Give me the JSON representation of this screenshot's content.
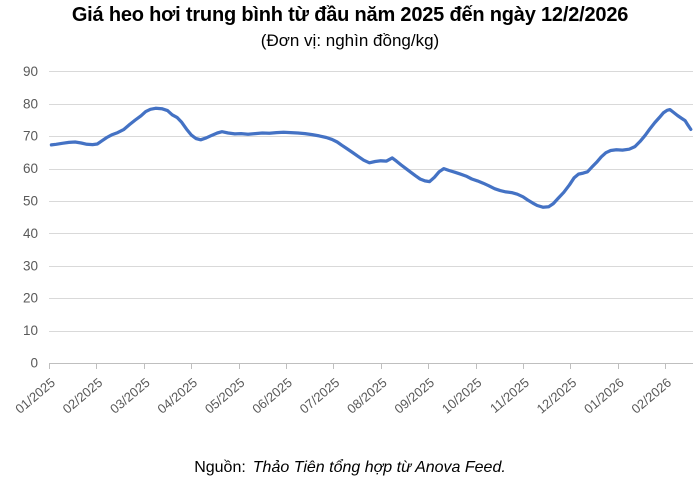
{
  "header": {
    "title": "Giá heo hơi trung bình từ đầu năm 2025 đến ngày 12/2/2026",
    "subtitle": "(Đơn vị: nghìn đồng/kg)"
  },
  "footer": {
    "source_label": "Nguồn:",
    "source_text": "Thảo Tiên tổng hợp từ Anova Feed."
  },
  "style": {
    "line_color": "#4472C4",
    "gridline_color": "#D9D9D9",
    "axis_color": "#BFBFBF",
    "tick_label_color": "#595959",
    "background": "#FFFFFF"
  },
  "chart_data": {
    "type": "line",
    "title": "Giá heo hơi trung bình từ đầu năm 2025 đến ngày 12/2/2026",
    "subtitle": "(Đơn vị: nghìn đồng/kg)",
    "unit": "nghìn đồng/kg",
    "grid": true,
    "legend": "none",
    "ylim": [
      0,
      90
    ],
    "y_tick_step": 10,
    "y_tick_labels": [
      "0",
      "10",
      "20",
      "30",
      "40",
      "50",
      "60",
      "70",
      "80",
      "90"
    ],
    "x_tick_labels": [
      "01/2025",
      "02/2025",
      "03/2025",
      "04/2025",
      "05/2025",
      "06/2025",
      "07/2025",
      "08/2025",
      "09/2025",
      "10/2025",
      "11/2025",
      "12/2025",
      "01/2026",
      "02/2026"
    ],
    "x_unit": "months_since_01_2025",
    "series": [
      {
        "name": "Giá heo hơi trung bình (nghìn đồng/kg)",
        "points": [
          [
            0.05,
            67.3
          ],
          [
            0.15,
            67.5
          ],
          [
            0.28,
            67.8
          ],
          [
            0.42,
            68.1
          ],
          [
            0.55,
            68.2
          ],
          [
            0.68,
            67.9
          ],
          [
            0.8,
            67.5
          ],
          [
            0.92,
            67.4
          ],
          [
            1.02,
            67.6
          ],
          [
            1.12,
            68.6
          ],
          [
            1.22,
            69.6
          ],
          [
            1.32,
            70.4
          ],
          [
            1.45,
            71.1
          ],
          [
            1.58,
            72.1
          ],
          [
            1.7,
            73.6
          ],
          [
            1.82,
            75.0
          ],
          [
            1.94,
            76.3
          ],
          [
            2.04,
            77.6
          ],
          [
            2.14,
            78.3
          ],
          [
            2.25,
            78.6
          ],
          [
            2.38,
            78.5
          ],
          [
            2.5,
            77.9
          ],
          [
            2.6,
            76.6
          ],
          [
            2.7,
            75.8
          ],
          [
            2.8,
            74.3
          ],
          [
            2.9,
            72.2
          ],
          [
            3.0,
            70.4
          ],
          [
            3.1,
            69.3
          ],
          [
            3.2,
            68.9
          ],
          [
            3.32,
            69.5
          ],
          [
            3.44,
            70.3
          ],
          [
            3.55,
            71.0
          ],
          [
            3.65,
            71.4
          ],
          [
            3.78,
            71.0
          ],
          [
            3.92,
            70.7
          ],
          [
            4.05,
            70.8
          ],
          [
            4.2,
            70.6
          ],
          [
            4.35,
            70.8
          ],
          [
            4.5,
            71.0
          ],
          [
            4.65,
            70.9
          ],
          [
            4.8,
            71.1
          ],
          [
            4.95,
            71.2
          ],
          [
            5.1,
            71.1
          ],
          [
            5.25,
            71.0
          ],
          [
            5.4,
            70.8
          ],
          [
            5.55,
            70.5
          ],
          [
            5.7,
            70.1
          ],
          [
            5.85,
            69.6
          ],
          [
            5.97,
            69.0
          ],
          [
            6.08,
            68.2
          ],
          [
            6.18,
            67.2
          ],
          [
            6.28,
            66.2
          ],
          [
            6.4,
            65.0
          ],
          [
            6.52,
            63.8
          ],
          [
            6.64,
            62.6
          ],
          [
            6.76,
            61.8
          ],
          [
            6.88,
            62.2
          ],
          [
            7.0,
            62.4
          ],
          [
            7.12,
            62.3
          ],
          [
            7.24,
            63.3
          ],
          [
            7.33,
            62.3
          ],
          [
            7.43,
            61.1
          ],
          [
            7.53,
            60.0
          ],
          [
            7.63,
            58.9
          ],
          [
            7.73,
            57.8
          ],
          [
            7.83,
            56.8
          ],
          [
            7.93,
            56.2
          ],
          [
            8.03,
            56.0
          ],
          [
            8.13,
            57.3
          ],
          [
            8.23,
            59.0
          ],
          [
            8.33,
            60.0
          ],
          [
            8.44,
            59.4
          ],
          [
            8.56,
            58.9
          ],
          [
            8.68,
            58.3
          ],
          [
            8.8,
            57.7
          ],
          [
            8.92,
            56.8
          ],
          [
            9.04,
            56.2
          ],
          [
            9.16,
            55.5
          ],
          [
            9.28,
            54.7
          ],
          [
            9.4,
            53.8
          ],
          [
            9.52,
            53.2
          ],
          [
            9.64,
            52.8
          ],
          [
            9.76,
            52.6
          ],
          [
            9.88,
            52.1
          ],
          [
            10.0,
            51.3
          ],
          [
            10.1,
            50.3
          ],
          [
            10.2,
            49.4
          ],
          [
            10.3,
            48.6
          ],
          [
            10.42,
            48.1
          ],
          [
            10.54,
            48.2
          ],
          [
            10.64,
            49.2
          ],
          [
            10.74,
            50.8
          ],
          [
            10.86,
            52.7
          ],
          [
            10.98,
            55.0
          ],
          [
            11.08,
            57.2
          ],
          [
            11.17,
            58.3
          ],
          [
            11.27,
            58.6
          ],
          [
            11.36,
            59.0
          ],
          [
            11.45,
            60.4
          ],
          [
            11.55,
            61.9
          ],
          [
            11.65,
            63.6
          ],
          [
            11.75,
            64.9
          ],
          [
            11.85,
            65.6
          ],
          [
            11.97,
            65.8
          ],
          [
            12.1,
            65.7
          ],
          [
            12.24,
            66.0
          ],
          [
            12.36,
            66.8
          ],
          [
            12.47,
            68.4
          ],
          [
            12.58,
            70.3
          ],
          [
            12.68,
            72.3
          ],
          [
            12.78,
            74.2
          ],
          [
            12.88,
            75.8
          ],
          [
            12.96,
            77.2
          ],
          [
            13.04,
            78.0
          ],
          [
            13.1,
            78.2
          ],
          [
            13.18,
            77.3
          ],
          [
            13.26,
            76.4
          ],
          [
            13.34,
            75.6
          ],
          [
            13.42,
            74.8
          ],
          [
            13.48,
            73.4
          ],
          [
            13.54,
            72.1
          ]
        ]
      }
    ]
  }
}
